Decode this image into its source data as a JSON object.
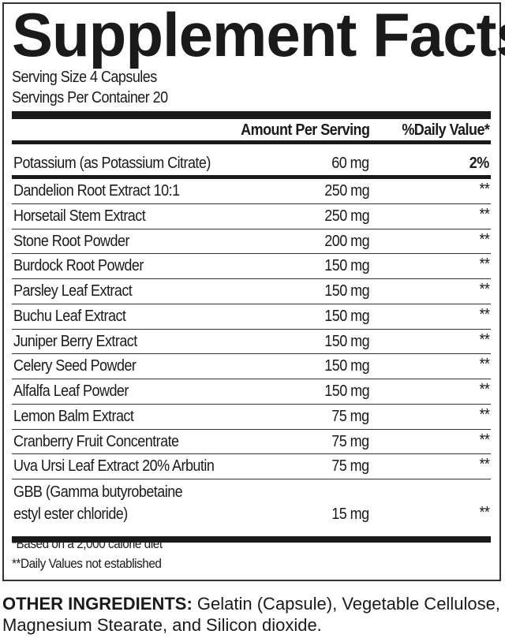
{
  "title": "Supplement Facts",
  "serving_size": "Serving Size 4 Capsules",
  "servings_per_container": "Servings Per Container 20",
  "header": {
    "amount": "Amount Per Serving",
    "dv": "%Daily Value*"
  },
  "potassium": {
    "name": "Potassium (as Potassium Citrate)",
    "amount": "60 mg",
    "dv": "2%"
  },
  "rows": [
    {
      "name": "Dandelion Root Extract 10:1",
      "amount": "250 mg",
      "dv": "**"
    },
    {
      "name": "Horsetail Stem Extract",
      "amount": "250 mg",
      "dv": "**"
    },
    {
      "name": "Stone Root Powder",
      "amount": "200 mg",
      "dv": "**"
    },
    {
      "name": "Burdock Root Powder",
      "amount": "150 mg",
      "dv": "**"
    },
    {
      "name": "Parsley Leaf Extract",
      "amount": "150 mg",
      "dv": "**"
    },
    {
      "name": "Buchu Leaf Extract",
      "amount": "150 mg",
      "dv": "**"
    },
    {
      "name": "Juniper Berry Extract",
      "amount": "150 mg",
      "dv": "**"
    },
    {
      "name": "Celery Seed Powder",
      "amount": "150 mg",
      "dv": "**"
    },
    {
      "name": "Alfalfa Leaf Powder",
      "amount": "150 mg",
      "dv": "**"
    },
    {
      "name": "Lemon Balm Extract",
      "amount": "75 mg",
      "dv": "**"
    },
    {
      "name": "Cranberry Fruit Concentrate",
      "amount": "75 mg",
      "dv": "**"
    },
    {
      "name": "Uva Ursi Leaf Extract 20% Arbutin",
      "amount": "75 mg",
      "dv": "**"
    }
  ],
  "gbb": {
    "line1": "GBB (Gamma butyrobetaine",
    "line2": "estyl ester chloride)",
    "amount": "15 mg",
    "dv": "**"
  },
  "footnotes": [
    "*Based on a 2,000 calorie diet",
    "**Daily Values not established"
  ],
  "other_ingredients": {
    "label": "OTHER INGREDIENTS:",
    "text": " Gelatin (Capsule), Vegetable Cellulose, Magnesium Stearate, and Silicon dioxide."
  }
}
